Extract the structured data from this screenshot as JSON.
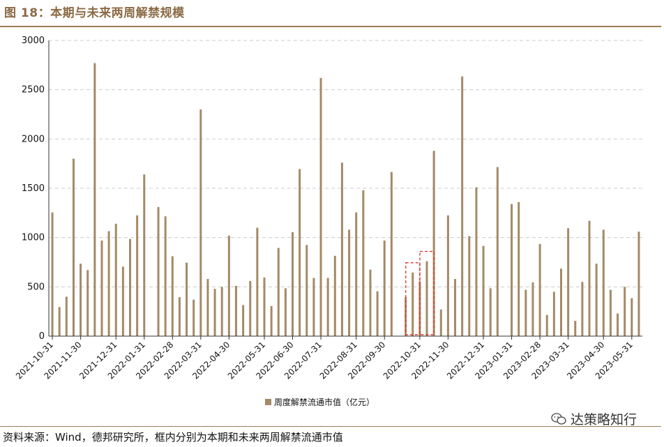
{
  "header": {
    "title": "图 18：本期与未来两周解禁规模"
  },
  "footer": {
    "source": "资料来源：Wind，德邦研究所，框内分别为本期和未来两周解禁流通市值",
    "watermark": "达策略知行"
  },
  "colors": {
    "bar": "#A38A66",
    "accent": "#8B6A45",
    "highlight": "#E03C2E",
    "grid": "#CCCCCC"
  },
  "chart_data": {
    "type": "bar",
    "title": "图 18：本期与未来两周解禁规模",
    "legend": "周度解禁流通市值（亿元）",
    "legend_position": "bottom-center",
    "ylim": [
      0,
      3000
    ],
    "yticks": [
      0,
      500,
      1000,
      1500,
      2000,
      2500,
      3000
    ],
    "xtick_labels": [
      "2021-10-31",
      "2021-11-30",
      "2021-12-31",
      "2022-01-31",
      "2022-02-28",
      "2022-03-31",
      "2022-04-30",
      "2022-05-31",
      "2022-06-30",
      "2022-07-31",
      "2022-08-31",
      "2022-09-30",
      "2022-10-31",
      "2022-11-30",
      "2022-12-31",
      "2023-01-31",
      "2023-02-28",
      "2023-03-31",
      "2023-04-30",
      "2023-05-31"
    ],
    "xtick_week_index": [
      0,
      4,
      9,
      13,
      17,
      21,
      25,
      30,
      34,
      38,
      43,
      47,
      52,
      56,
      61,
      65,
      69,
      73,
      78,
      82
    ],
    "values": [
      1255,
      295,
      400,
      1800,
      735,
      670,
      2770,
      970,
      1065,
      1140,
      705,
      985,
      1225,
      1640,
      0,
      1310,
      1215,
      810,
      395,
      745,
      370,
      2300,
      580,
      480,
      500,
      1020,
      510,
      315,
      560,
      1100,
      595,
      305,
      895,
      485,
      1055,
      1695,
      925,
      590,
      2620,
      590,
      815,
      1760,
      1080,
      1255,
      1480,
      675,
      455,
      970,
      1665,
      0,
      395,
      645,
      555,
      760,
      1880,
      270,
      1225,
      580,
      2635,
      1015,
      1510,
      915,
      485,
      1715,
      0,
      1340,
      1360,
      470,
      545,
      935,
      215,
      450,
      685,
      1095,
      155,
      550,
      1170,
      735,
      1080,
      470,
      230,
      500,
      385,
      1060
    ],
    "highlight_boxes": [
      {
        "label": "本期",
        "week_index": 51
      },
      {
        "label": "未来两周",
        "week_index": 53
      }
    ]
  }
}
